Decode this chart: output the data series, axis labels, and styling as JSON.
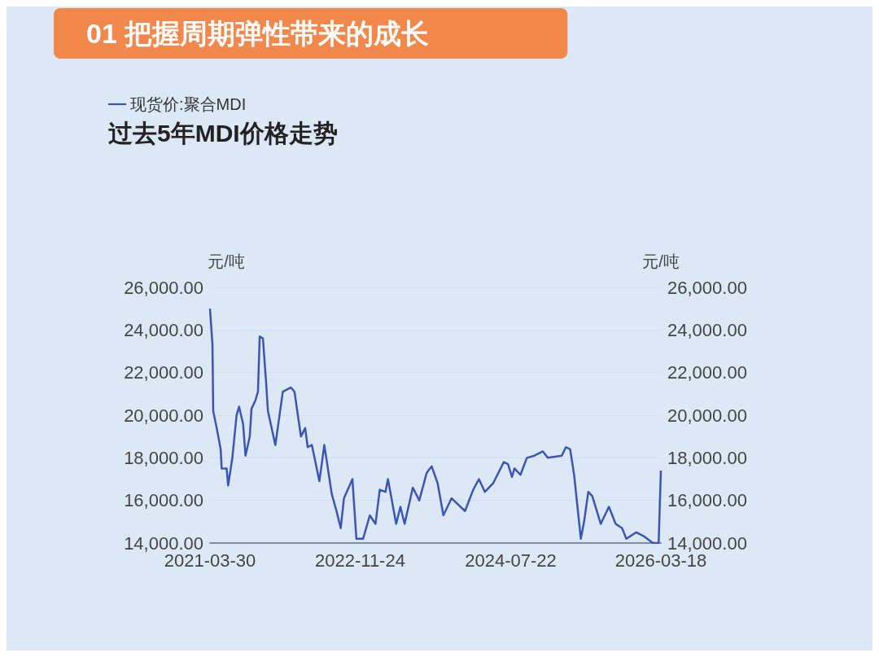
{
  "chart_data": {
    "type": "line",
    "title": "01 把握周期弹性带来的成长",
    "subtitle": "过去5年MDI价格走势",
    "ylabel": "元/吨",
    "y2label": "元/吨",
    "legend": "top left",
    "grid": "y",
    "marker": "none",
    "line_style": "solid",
    "xlim": [
      "2021-03-30",
      "2026-03-18"
    ],
    "xticks": [
      "2021-03-30",
      "2022-11-24",
      "2024-07-22",
      "2026-03-18"
    ],
    "ylim": [
      14000,
      26000
    ],
    "yticks": [
      {
        "value": 14000,
        "label": "14,000.00"
      },
      {
        "value": 16000,
        "label": "16,000.00"
      },
      {
        "value": 18000,
        "label": "18,000.00"
      },
      {
        "value": 20000,
        "label": "20,000.00"
      },
      {
        "value": 22000,
        "label": "22,000.00"
      },
      {
        "value": 24000,
        "label": "24,000.00"
      },
      {
        "value": 26000,
        "label": "26,000.00"
      }
    ],
    "y2lim": [
      14000,
      26000
    ],
    "y2ticks": [
      {
        "value": 14000,
        "label": "14,000.00"
      },
      {
        "value": 16000,
        "label": "16,000.00"
      },
      {
        "value": 18000,
        "label": "18,000.00"
      },
      {
        "value": 20000,
        "label": "20,000.00"
      },
      {
        "value": 22000,
        "label": "22,000.00"
      },
      {
        "value": 24000,
        "label": "24,000.00"
      },
      {
        "value": 26000,
        "label": "26,000.00"
      }
    ],
    "x": [
      "2021-03-30",
      "2021-04-09",
      "2021-04-12",
      "2021-04-26",
      "2021-05-12",
      "2021-05-16",
      "2021-06-05",
      "2021-06-11",
      "2021-06-28",
      "2021-07-15",
      "2021-07-25",
      "2021-08-10",
      "2021-08-20",
      "2021-09-06",
      "2021-09-13",
      "2021-09-29",
      "2021-10-09",
      "2021-10-16",
      "2021-10-29",
      "2021-11-11",
      "2021-11-18",
      "2021-12-18",
      "2022-01-17",
      "2022-02-19",
      "2022-03-05",
      "2022-03-21",
      "2022-03-31",
      "2022-04-17",
      "2022-04-27",
      "2022-05-14",
      "2022-06-13",
      "2022-07-03",
      "2022-08-02",
      "2022-08-21",
      "2022-09-07",
      "2022-09-20",
      "2022-10-24",
      "2022-11-09",
      "2022-12-06",
      "2023-01-02",
      "2023-01-25",
      "2023-02-11",
      "2023-03-06",
      "2023-03-16",
      "2023-04-18",
      "2023-05-05",
      "2023-05-22",
      "2023-06-24",
      "2023-07-20",
      "2023-08-19",
      "2023-09-08",
      "2023-10-02",
      "2023-10-25",
      "2023-11-27",
      "2023-12-24",
      "2024-01-20",
      "2024-02-22",
      "2024-03-16",
      "2024-04-09",
      "2024-05-12",
      "2024-06-24",
      "2024-07-11",
      "2024-07-27",
      "2024-08-06",
      "2024-08-30",
      "2024-09-25",
      "2024-10-25",
      "2024-11-28",
      "2024-12-18",
      "2025-02-12",
      "2025-03-01",
      "2025-03-18",
      "2025-04-03",
      "2025-04-30",
      "2025-05-13",
      "2025-05-30",
      "2025-06-15",
      "2025-07-19",
      "2025-08-21",
      "2025-09-17",
      "2025-10-13",
      "2025-10-30",
      "2025-12-09",
      "2026-01-11",
      "2026-02-14",
      "2026-03-09",
      "2026-03-18"
    ],
    "series": [
      {
        "name": "现货价:聚合MDI",
        "color": "#3a55b4",
        "values": [
          25000,
          23300,
          20200,
          19400,
          18400,
          17500,
          17500,
          16700,
          18000,
          20000,
          20400,
          19600,
          18100,
          19000,
          20300,
          20700,
          21100,
          23700,
          23600,
          21500,
          20200,
          18600,
          21100,
          21300,
          21100,
          19800,
          19000,
          19400,
          18500,
          18600,
          16900,
          18600,
          16300,
          15500,
          14700,
          16100,
          17000,
          14200,
          14200,
          15300,
          14900,
          16500,
          16400,
          17000,
          14900,
          15700,
          14900,
          16600,
          16000,
          17300,
          17600,
          16800,
          15300,
          16100,
          15800,
          15500,
          16500,
          17000,
          16400,
          16800,
          17800,
          17700,
          17100,
          17500,
          17200,
          18000,
          18100,
          18300,
          18000,
          18100,
          18500,
          18400,
          17200,
          14200,
          15000,
          16400,
          16200,
          14900,
          15700,
          14900,
          14700,
          14200,
          14500,
          14300,
          14000,
          14000,
          17400
        ]
      }
    ]
  }
}
